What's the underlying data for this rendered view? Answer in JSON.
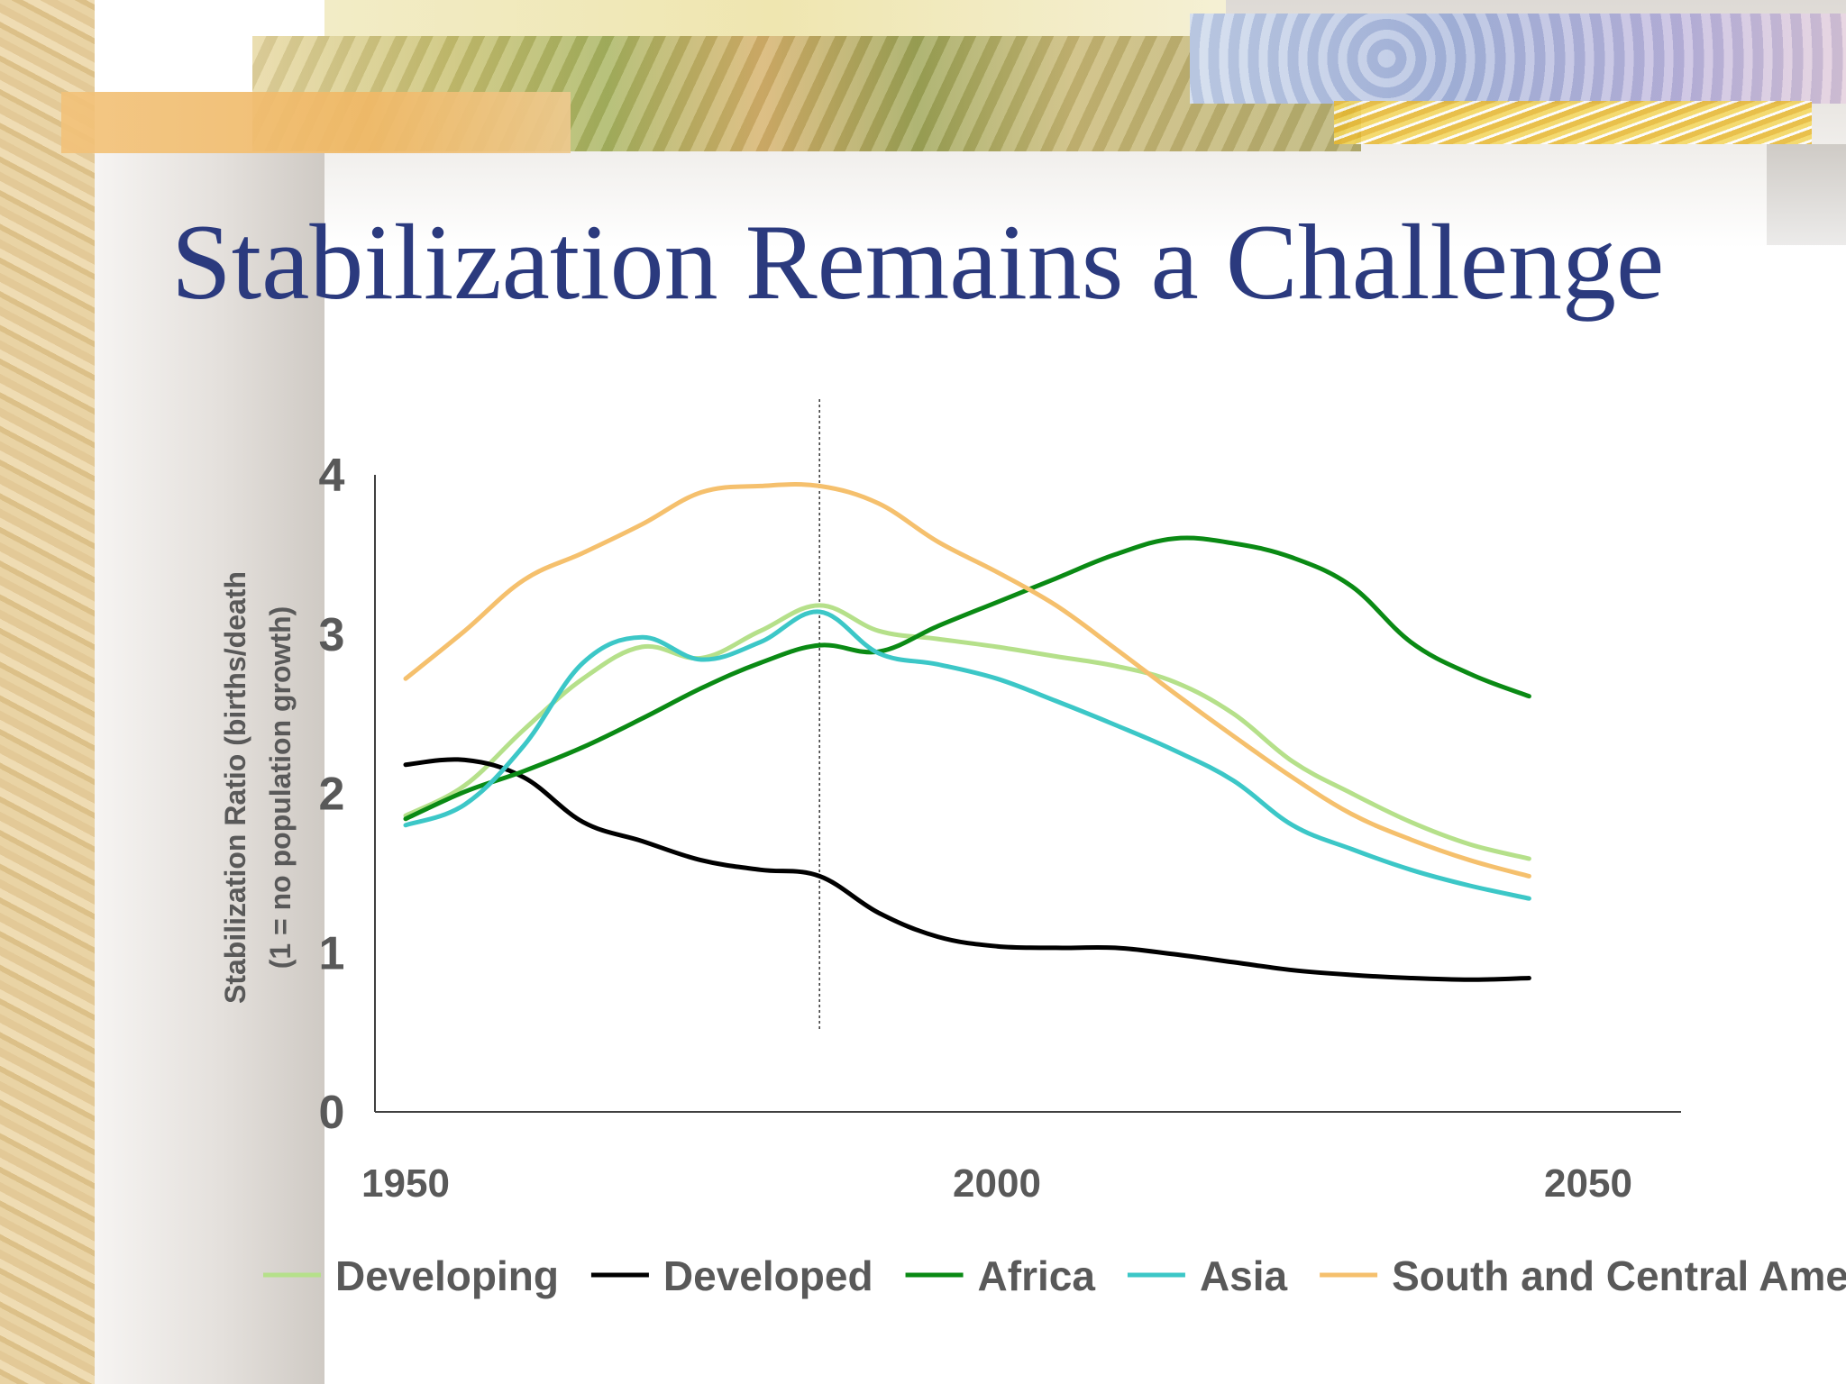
{
  "slide": {
    "title": "Stabilization Remains a Challenge"
  },
  "chart_data": {
    "type": "line",
    "title": "",
    "xlabel": "",
    "ylabel": "Stabilization Ratio (births/death",
    "ylabel_line2": "(1 = no population growth)",
    "xlim": [
      1950,
      2050
    ],
    "ylim": [
      0,
      4
    ],
    "x_ticks": [
      "1950",
      "2000",
      "2050"
    ],
    "y_ticks": [
      "0",
      "1",
      "2",
      "3",
      "4"
    ],
    "grid": false,
    "legend_position": "bottom",
    "reference_line_x": 1985,
    "x": [
      1950,
      1955,
      1960,
      1965,
      1970,
      1975,
      1980,
      1985,
      1990,
      1995,
      2000,
      2005,
      2010,
      2015,
      2020,
      2025,
      2030,
      2035,
      2040,
      2045
    ],
    "series": [
      {
        "name": "Developing",
        "color": "#b5e08a",
        "values": [
          1.86,
          2.05,
          2.4,
          2.72,
          2.92,
          2.85,
          3.02,
          3.18,
          3.02,
          2.97,
          2.92,
          2.86,
          2.8,
          2.7,
          2.5,
          2.2,
          2.0,
          1.82,
          1.68,
          1.59
        ]
      },
      {
        "name": "Developed",
        "color": "#000000",
        "values": [
          2.18,
          2.21,
          2.1,
          1.82,
          1.7,
          1.58,
          1.52,
          1.48,
          1.25,
          1.1,
          1.04,
          1.03,
          1.03,
          0.99,
          0.94,
          0.89,
          0.86,
          0.84,
          0.83,
          0.84
        ]
      },
      {
        "name": "Africa",
        "color": "#0a8a14",
        "values": [
          1.84,
          2.01,
          2.14,
          2.29,
          2.47,
          2.66,
          2.82,
          2.93,
          2.89,
          3.05,
          3.2,
          3.35,
          3.5,
          3.6,
          3.57,
          3.48,
          3.3,
          2.95,
          2.75,
          2.61
        ]
      },
      {
        "name": "Asia",
        "color": "#3cc7c7",
        "values": [
          1.8,
          1.93,
          2.3,
          2.82,
          2.98,
          2.84,
          2.95,
          3.14,
          2.88,
          2.81,
          2.72,
          2.58,
          2.43,
          2.27,
          2.08,
          1.8,
          1.65,
          1.52,
          1.42,
          1.34
        ]
      },
      {
        "name": "South and Central America",
        "color": "#f5c06d",
        "values": [
          2.72,
          3.02,
          3.34,
          3.51,
          3.69,
          3.89,
          3.93,
          3.93,
          3.82,
          3.58,
          3.39,
          3.18,
          2.91,
          2.63,
          2.36,
          2.1,
          1.87,
          1.71,
          1.58,
          1.48
        ]
      }
    ]
  }
}
